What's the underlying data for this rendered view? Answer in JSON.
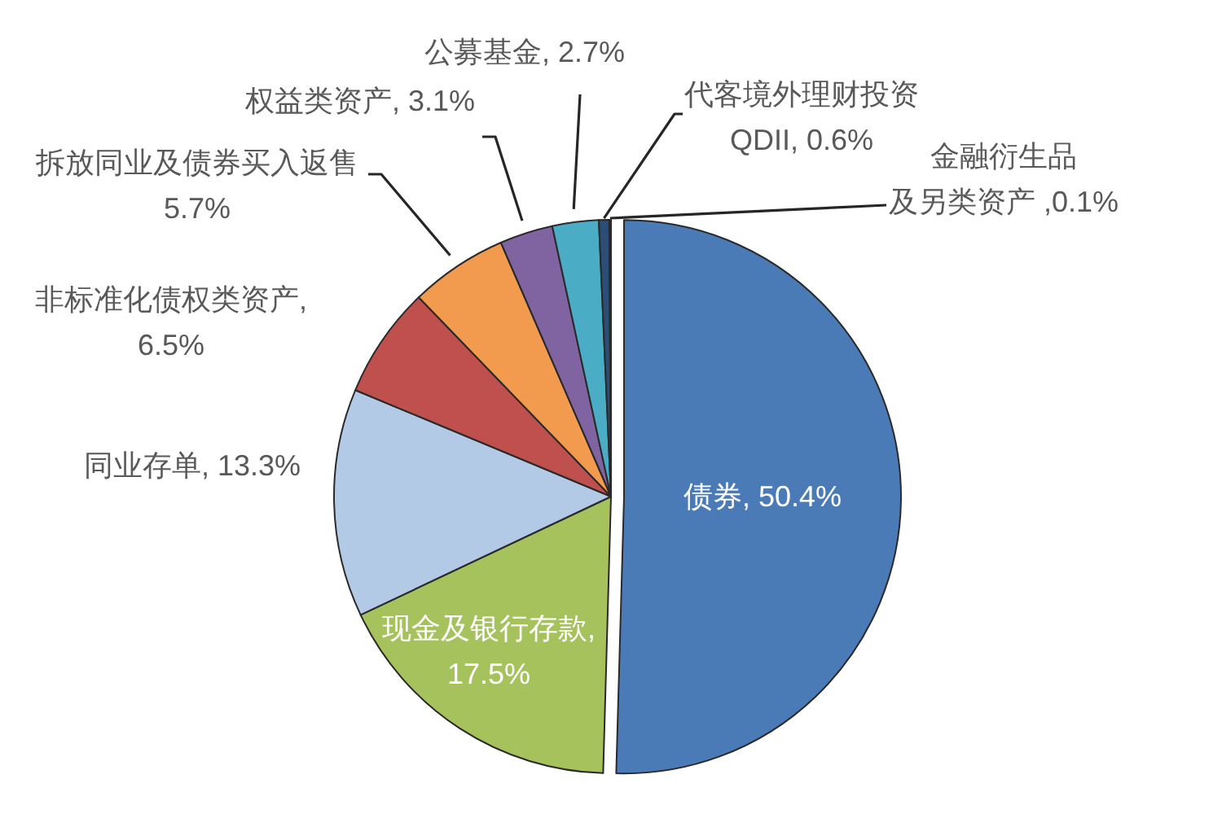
{
  "chart_data": {
    "type": "pie",
    "categories": [
      "债券",
      "现金及银行存款",
      "同业存单",
      "非标准化债权类资产",
      "拆放同业及债券买入返售",
      "权益类资产",
      "公募基金",
      "代客境外理财投资QDII",
      "金融衍生品及另类资产"
    ],
    "values": [
      50.4,
      17.5,
      13.3,
      6.5,
      5.7,
      3.1,
      2.7,
      0.6,
      0.1
    ],
    "colors": [
      "#4a7bb7",
      "#a5c25c",
      "#b3cae6",
      "#c0504d",
      "#f29a4e",
      "#8064a2",
      "#4bacc6",
      "#2c4d75",
      "#7a2a28"
    ],
    "value_labels": [
      ", 50.4%",
      ", 17.5%",
      ", 13.3%",
      ", 6.5%",
      "5.7%",
      ", 3.1%",
      ", 2.7%",
      ", 0.6%",
      " ,0.1%"
    ]
  }
}
